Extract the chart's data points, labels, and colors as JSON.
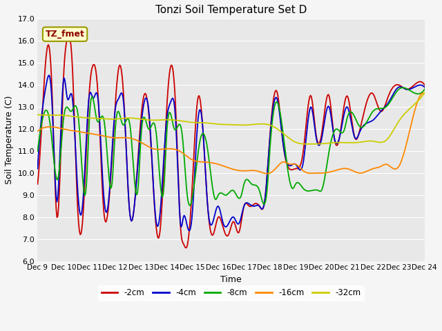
{
  "title": "Tonzi Soil Temperature Set D",
  "xlabel": "Time",
  "ylabel": "Soil Temperature (C)",
  "ylim": [
    6.0,
    17.0
  ],
  "yticks": [
    6.0,
    7.0,
    8.0,
    9.0,
    10.0,
    11.0,
    12.0,
    13.0,
    14.0,
    15.0,
    16.0,
    17.0
  ],
  "series_colors": [
    "#cc0000",
    "#0000cc",
    "#00aa00",
    "#ff8800",
    "#cccc00"
  ],
  "series_labels": [
    "-2cm",
    "-4cm",
    "-8cm",
    "-16cm",
    "-32cm"
  ],
  "label_box_text": "TZ_fmet",
  "label_box_color": "#ffffcc",
  "label_box_edge": "#999900",
  "bg_color": "#e8e8e8",
  "grid_color": "#ffffff",
  "n_points": 500,
  "xtick_labels": [
    "Dec 9",
    "Dec 10",
    "Dec 11",
    "Dec 12",
    "Dec 13",
    "Dec 14",
    "Dec 15",
    "Dec 16",
    "Dec 17",
    "Dec 18",
    "Dec 19",
    "Dec 20",
    "Dec 21",
    "Dec 22",
    "Dec 23",
    "Dec 24"
  ],
  "xtick_positions": [
    0,
    1,
    2,
    3,
    4,
    5,
    6,
    7,
    8,
    9,
    10,
    11,
    12,
    13,
    14,
    15
  ]
}
